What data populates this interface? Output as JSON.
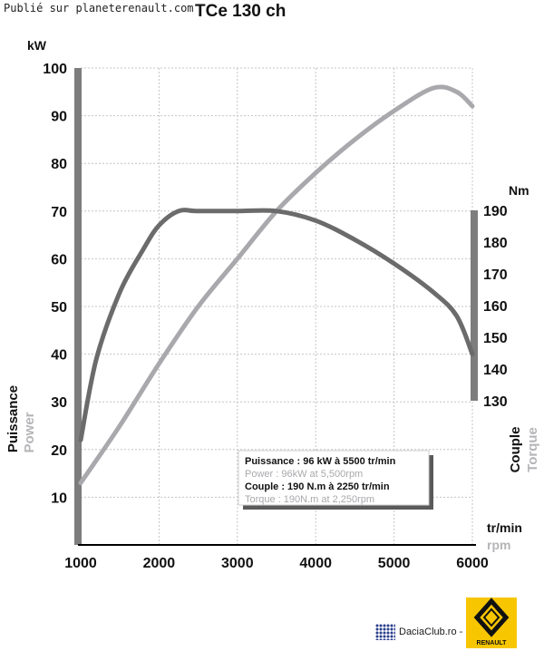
{
  "header": {
    "watermark": "Publié sur planeterenault.com",
    "title": "TCe 130 ch"
  },
  "chart_data": {
    "type": "line",
    "x_range": [
      1000,
      6000
    ],
    "x_ticks": [
      1000,
      2000,
      3000,
      4000,
      5000,
      6000
    ],
    "x_unit": "tr/min",
    "x_unit_en": "rpm",
    "y_left": {
      "unit": "kW",
      "range": [
        0,
        100
      ],
      "ticks": [
        10,
        20,
        30,
        40,
        50,
        60,
        70,
        80,
        90,
        100
      ],
      "label": "Puissance",
      "label_en": "Power"
    },
    "y_right": {
      "unit": "Nm",
      "range": [
        130,
        190
      ],
      "ticks": [
        130,
        140,
        150,
        160,
        170,
        180,
        190
      ],
      "label": "Couple",
      "label_en": "Torque"
    },
    "grid": true,
    "series": [
      {
        "axis": "left",
        "color": "#a9a9ad",
        "points": [
          [
            1000,
            13
          ],
          [
            1500,
            25
          ],
          [
            2000,
            38
          ],
          [
            2500,
            50
          ],
          [
            3000,
            60
          ],
          [
            3500,
            70
          ],
          [
            4000,
            78
          ],
          [
            4500,
            85
          ],
          [
            5000,
            91
          ],
          [
            5500,
            95.8
          ],
          [
            5800,
            95
          ],
          [
            6000,
            92
          ]
        ]
      },
      {
        "axis": "left",
        "color": "#6b6b6b",
        "points": [
          [
            1000,
            22
          ],
          [
            1200,
            39
          ],
          [
            1500,
            53
          ],
          [
            1800,
            62
          ],
          [
            2000,
            67
          ],
          [
            2250,
            70
          ],
          [
            2500,
            70
          ],
          [
            3000,
            70
          ],
          [
            3500,
            70
          ],
          [
            4000,
            68
          ],
          [
            4500,
            64
          ],
          [
            5000,
            59
          ],
          [
            5500,
            53
          ],
          [
            5800,
            48
          ],
          [
            6000,
            40
          ]
        ]
      }
    ],
    "legend": {
      "placement": "bottom-right",
      "lines": [
        "Puissance : 96 kW à 5500 tr/min",
        "Power : 96kW at 5,500rpm",
        "Couple : 190 N.m à 2250 tr/min",
        "Torque : 190N.m at 2,250rpm"
      ]
    }
  },
  "footer": {
    "branding": "DaciaClub.ro - Reno.ro",
    "logo_text": "RENAULT"
  }
}
